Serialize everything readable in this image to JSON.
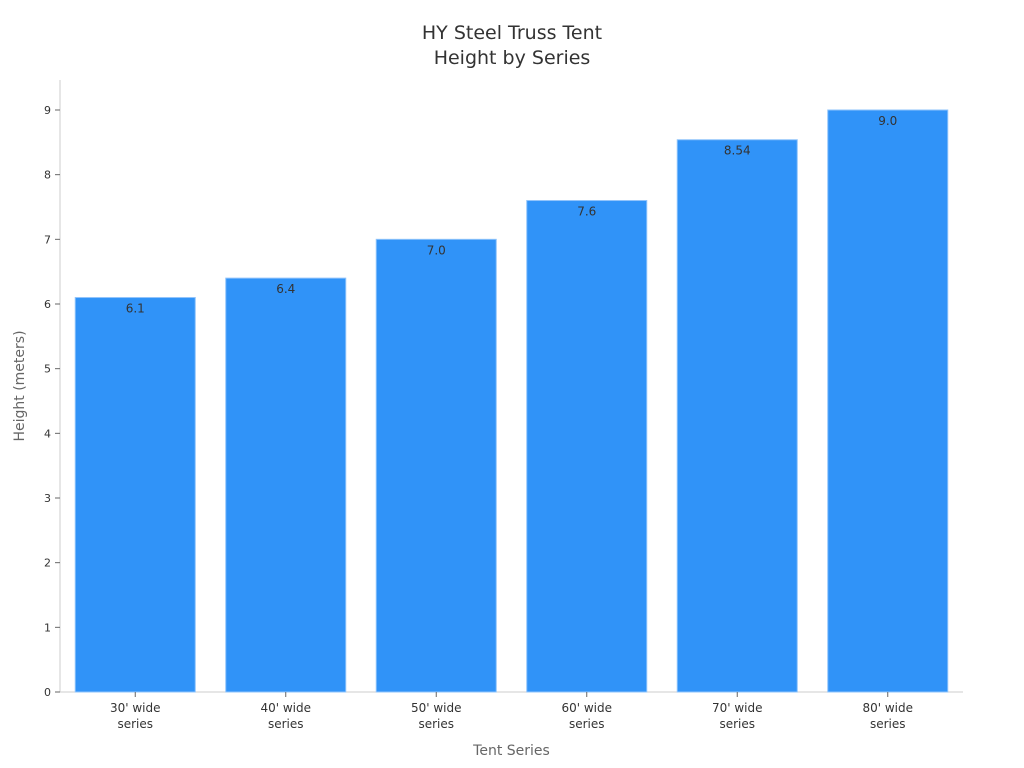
{
  "chart_data": {
    "type": "bar",
    "title": "HY Steel Truss Tent Height by Series",
    "title_lines": [
      "HY Steel Truss Tent",
      "Height by Series"
    ],
    "xlabel": "Tent Series",
    "ylabel": "Height (meters)",
    "categories": [
      "30' wide series",
      "40' wide series",
      "50' wide series",
      "60' wide series",
      "70' wide series",
      "80' wide series"
    ],
    "category_lines": [
      [
        "30' wide",
        "series"
      ],
      [
        "40' wide",
        "series"
      ],
      [
        "50' wide",
        "series"
      ],
      [
        "60' wide",
        "series"
      ],
      [
        "70' wide",
        "series"
      ],
      [
        "80' wide",
        "series"
      ]
    ],
    "values": [
      6.1,
      6.4,
      7.0,
      7.6,
      8.54,
      9.0
    ],
    "value_labels": [
      "6.1",
      "6.4",
      "7.0",
      "7.6",
      "8.54",
      "9.0"
    ],
    "ylim": [
      0,
      9
    ],
    "yticks": [
      0,
      1,
      2,
      3,
      4,
      5,
      6,
      7,
      8,
      9
    ],
    "grid": false,
    "legend": null,
    "bar_color": "#3093f8"
  }
}
